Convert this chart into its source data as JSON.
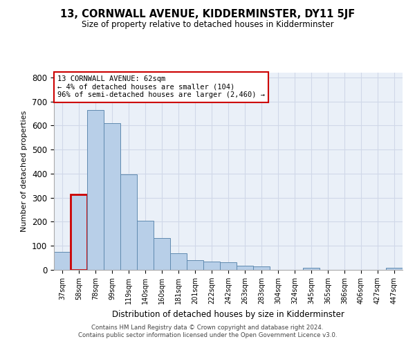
{
  "title": "13, CORNWALL AVENUE, KIDDERMINSTER, DY11 5JF",
  "subtitle": "Size of property relative to detached houses in Kidderminster",
  "xlabel": "Distribution of detached houses by size in Kidderminster",
  "ylabel": "Number of detached properties",
  "categories": [
    "37sqm",
    "58sqm",
    "78sqm",
    "99sqm",
    "119sqm",
    "140sqm",
    "160sqm",
    "181sqm",
    "201sqm",
    "222sqm",
    "242sqm",
    "263sqm",
    "283sqm",
    "304sqm",
    "324sqm",
    "345sqm",
    "365sqm",
    "386sqm",
    "406sqm",
    "427sqm",
    "447sqm"
  ],
  "values": [
    75,
    315,
    665,
    610,
    398,
    205,
    133,
    70,
    40,
    35,
    33,
    18,
    13,
    0,
    0,
    8,
    0,
    0,
    0,
    0,
    8
  ],
  "bar_color": "#b8cfe8",
  "bar_edge_color": "#5f8ab0",
  "highlight_bar_index": 1,
  "highlight_bar_edge_color": "#cc0000",
  "annotation_text": "13 CORNWALL AVENUE: 62sqm\n← 4% of detached houses are smaller (104)\n96% of semi-detached houses are larger (2,460) →",
  "annotation_box_color": "#ffffff",
  "annotation_box_edge_color": "#cc0000",
  "ylim": [
    0,
    820
  ],
  "yticks": [
    0,
    100,
    200,
    300,
    400,
    500,
    600,
    700,
    800
  ],
  "grid_color": "#d0d8e8",
  "bg_color": "#eaf0f8",
  "footer1": "Contains HM Land Registry data © Crown copyright and database right 2024.",
  "footer2": "Contains public sector information licensed under the Open Government Licence v3.0."
}
